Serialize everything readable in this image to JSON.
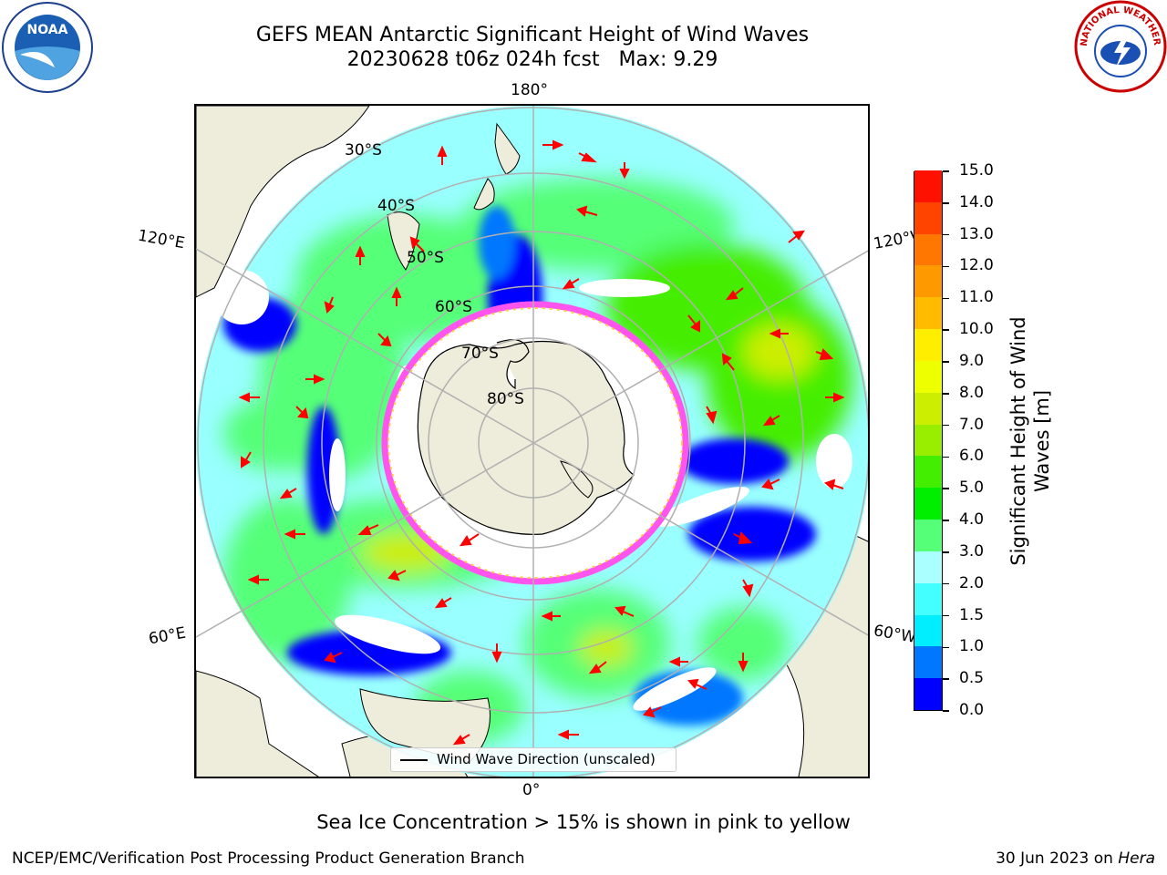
{
  "header": {
    "title_line1": "GEFS MEAN Antarctic Significant Height of Wind Waves",
    "title_line2": "20230628 t06z 024h fcst   Max: 9.29"
  },
  "logos": {
    "left": "noaa-logo",
    "right": "national-weather-service-logo",
    "left_text": "NOAA",
    "right_text": "NATIONAL WEATHER SERVICE"
  },
  "map": {
    "projection": "south-polar-stereographic",
    "lon_labels": {
      "top": "180°",
      "upper_left": "120°E",
      "upper_right": "120°W",
      "lower_left": "60°E",
      "lower_right": "60°W",
      "bottom": "0°"
    },
    "lat_labels": [
      "30°S",
      "40°S",
      "50°S",
      "60°S",
      "70°S",
      "80°S"
    ],
    "legend_label": "Wind Wave Direction (unscaled)",
    "colors": {
      "land": "#eeecdb",
      "sea_ice": "#ff66ee",
      "arrow": "#ff0000",
      "grid": "#b0b0b0"
    }
  },
  "colorbar": {
    "title_line1": "Significant Height of Wind",
    "title_line2": "Waves [m]",
    "tick_labels": [
      "0.0",
      "0.5",
      "1.0",
      "1.5",
      "2.0",
      "3.0",
      "4.0",
      "5.0",
      "6.0",
      "7.0",
      "8.0",
      "9.0",
      "10.0",
      "11.0",
      "12.0",
      "13.0",
      "14.0",
      "15.0"
    ],
    "colors": [
      "#0000ff",
      "#0077ff",
      "#00eeff",
      "#44ffff",
      "#aaffff",
      "#55ff77",
      "#00ee00",
      "#44ee00",
      "#99ee00",
      "#ccee00",
      "#eeff00",
      "#ffee00",
      "#ffbb00",
      "#ff9900",
      "#ff7700",
      "#ff4400",
      "#ff1100"
    ]
  },
  "notes": {
    "sea_ice": "Sea Ice Concentration > 15% is shown in pink to yellow",
    "footer_left": "NCEP/EMC/Verification Post Processing Product Generation Branch",
    "footer_right_prefix": "30 Jun 2023 on ",
    "footer_right_machine": "Hera"
  }
}
